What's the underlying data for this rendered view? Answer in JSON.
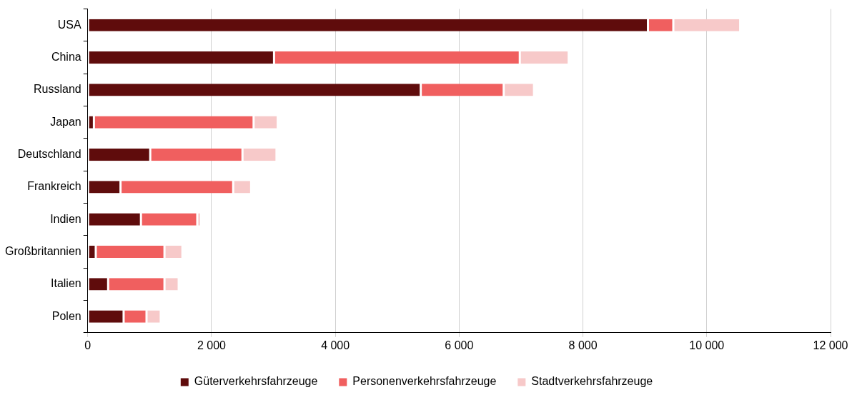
{
  "chart_data": {
    "type": "bar",
    "orientation": "horizontal",
    "stacked": true,
    "categories": [
      "USA",
      "China",
      "Russland",
      "Japan",
      "Deutschland",
      "Frankreich",
      "Indien",
      "Großbritannien",
      "Italien",
      "Polen"
    ],
    "series": [
      {
        "name": "Güterverkehrsfahrzeuge",
        "color": "#5f0c0c",
        "values": [
          9050,
          3010,
          5380,
          100,
          1010,
          530,
          860,
          130,
          330,
          580
        ]
      },
      {
        "name": "Personenverkehrsfahrzeuge",
        "color": "#f05f5f",
        "values": [
          410,
          3970,
          1340,
          2580,
          1490,
          1820,
          910,
          1110,
          910,
          370
        ]
      },
      {
        "name": "Stadtverkehrsfahrzeuge",
        "color": "#f7c9c9",
        "values": [
          1080,
          790,
          490,
          390,
          550,
          290,
          60,
          290,
          230,
          230
        ]
      }
    ],
    "xlim": [
      0,
      12000
    ],
    "xticks": [
      {
        "value": 0,
        "label": "0"
      },
      {
        "value": 2000,
        "label": "2 000"
      },
      {
        "value": 4000,
        "label": "4 000"
      },
      {
        "value": 6000,
        "label": "6 000"
      },
      {
        "value": 8000,
        "label": "8 000"
      },
      {
        "value": 10000,
        "label": "10 000"
      },
      {
        "value": 12000,
        "label": "12 000"
      }
    ],
    "grid": "x",
    "legend": "bottom"
  }
}
